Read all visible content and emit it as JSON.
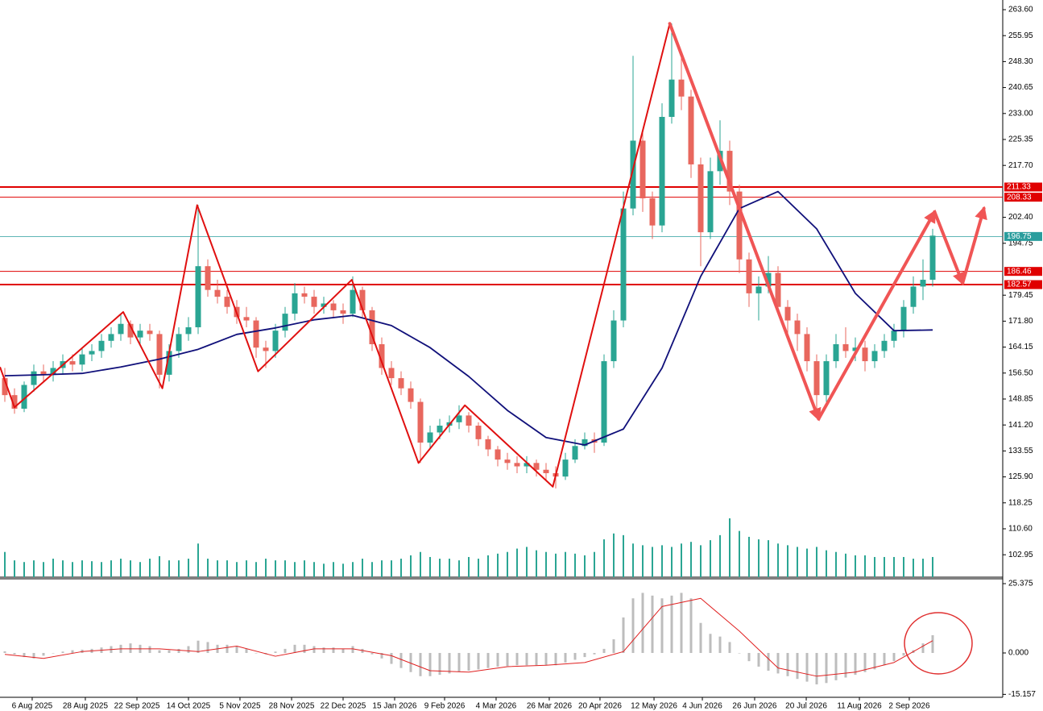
{
  "chart_data": {
    "type": "candlestick",
    "up_color": "#2aa593",
    "down_color": "#e8675e",
    "ohlc": [
      [
        155,
        158,
        148,
        150
      ],
      [
        150,
        152,
        144.5,
        146
      ],
      [
        146,
        154,
        145,
        153
      ],
      [
        153,
        159,
        151,
        157
      ],
      [
        157,
        159,
        154,
        156
      ],
      [
        156,
        160,
        154,
        158
      ],
      [
        158,
        162,
        156,
        160
      ],
      [
        160,
        162,
        157,
        159
      ],
      [
        159,
        164,
        157,
        162
      ],
      [
        162,
        165,
        160,
        163
      ],
      [
        163,
        168,
        161,
        166
      ],
      [
        166,
        170,
        164,
        168
      ],
      [
        168,
        174,
        166,
        171
      ],
      [
        171,
        172,
        165,
        167
      ],
      [
        167,
        171,
        165,
        169
      ],
      [
        169,
        171,
        166,
        168
      ],
      [
        168,
        169,
        152,
        156
      ],
      [
        156,
        165,
        154,
        163
      ],
      [
        163,
        170,
        161,
        168
      ],
      [
        168,
        173,
        166,
        170
      ],
      [
        170,
        206,
        168,
        188
      ],
      [
        188,
        190,
        179,
        181
      ],
      [
        181,
        184,
        177,
        179
      ],
      [
        179,
        181,
        174,
        176
      ],
      [
        176,
        178,
        171,
        173
      ],
      [
        173,
        176,
        170,
        172
      ],
      [
        172,
        173,
        161,
        164
      ],
      [
        164,
        166,
        158,
        163
      ],
      [
        163,
        171,
        161,
        169
      ],
      [
        169,
        176,
        167,
        174
      ],
      [
        174,
        183,
        172,
        180
      ],
      [
        180,
        182,
        177,
        179
      ],
      [
        179,
        181,
        174,
        176
      ],
      [
        176,
        179,
        174,
        177
      ],
      [
        177,
        178,
        173,
        175
      ],
      [
        175,
        177,
        171,
        174
      ],
      [
        174,
        185,
        173,
        181
      ],
      [
        181,
        182,
        173,
        175
      ],
      [
        175,
        176,
        163,
        165
      ],
      [
        165,
        167,
        156,
        158
      ],
      [
        158,
        160,
        153,
        155
      ],
      [
        155,
        157,
        150,
        152
      ],
      [
        152,
        154,
        146,
        148
      ],
      [
        148,
        149,
        130,
        136
      ],
      [
        136,
        141,
        134,
        139
      ],
      [
        139,
        143,
        137,
        141
      ],
      [
        141,
        144,
        139,
        142
      ],
      [
        142,
        147,
        140,
        144
      ],
      [
        144,
        145,
        139,
        141
      ],
      [
        141,
        142,
        135,
        137
      ],
      [
        137,
        138,
        132,
        134
      ],
      [
        134,
        135,
        129,
        131
      ],
      [
        131,
        133,
        128,
        130
      ],
      [
        130,
        132,
        127,
        129
      ],
      [
        129,
        132,
        127,
        130
      ],
      [
        130,
        131,
        126,
        128
      ],
      [
        128,
        130,
        125,
        127
      ],
      [
        127,
        129,
        122.5,
        126
      ],
      [
        126,
        133,
        125,
        131
      ],
      [
        131,
        137,
        130,
        135
      ],
      [
        135,
        139,
        134,
        137
      ],
      [
        137,
        139,
        133,
        136
      ],
      [
        136,
        162,
        135,
        160
      ],
      [
        160,
        175,
        158,
        172
      ],
      [
        172,
        210,
        170,
        205
      ],
      [
        205,
        250,
        203,
        225
      ],
      [
        225,
        228,
        204,
        208
      ],
      [
        208,
        210,
        196,
        200
      ],
      [
        200,
        236,
        198,
        232
      ],
      [
        232,
        259.5,
        230,
        243
      ],
      [
        243,
        250,
        234,
        238
      ],
      [
        238,
        240,
        214,
        218
      ],
      [
        218,
        220,
        188,
        198
      ],
      [
        198,
        220,
        196,
        216
      ],
      [
        216,
        231,
        212,
        222
      ],
      [
        222,
        225,
        206,
        210
      ],
      [
        210,
        212,
        186,
        190
      ],
      [
        190,
        192,
        176,
        180
      ],
      [
        180,
        185,
        172,
        182
      ],
      [
        182,
        191,
        180,
        186
      ],
      [
        186,
        188,
        174,
        176
      ],
      [
        176,
        178,
        168,
        172
      ],
      [
        172,
        174,
        163,
        168
      ],
      [
        168,
        170,
        157,
        160
      ],
      [
        160,
        162,
        143.5,
        150
      ],
      [
        150,
        162,
        148,
        160
      ],
      [
        160,
        168,
        158,
        165
      ],
      [
        165,
        170,
        161,
        163
      ],
      [
        163,
        167,
        160,
        164
      ],
      [
        164,
        166,
        157,
        160
      ],
      [
        160,
        165,
        158,
        163
      ],
      [
        163,
        168,
        161,
        166
      ],
      [
        166,
        171,
        164,
        169
      ],
      [
        169,
        178,
        167,
        176
      ],
      [
        176,
        185,
        174,
        182
      ],
      [
        182,
        190,
        178,
        184
      ],
      [
        184,
        199,
        182,
        197
      ]
    ],
    "volume": [
      30,
      20,
      18,
      20,
      18,
      22,
      20,
      18,
      20,
      19,
      18,
      20,
      22,
      20,
      18,
      22,
      25,
      20,
      20,
      22,
      40,
      22,
      20,
      20,
      18,
      20,
      18,
      22,
      20,
      20,
      18,
      20,
      18,
      16,
      18,
      16,
      18,
      22,
      18,
      20,
      20,
      22,
      26,
      30,
      24,
      22,
      22,
      20,
      24,
      22,
      26,
      28,
      30,
      34,
      36,
      32,
      30,
      28,
      30,
      28,
      26,
      30,
      45,
      52,
      50,
      40,
      38,
      36,
      38,
      36,
      40,
      42,
      38,
      44,
      50,
      70,
      55,
      48,
      45,
      44,
      40,
      38,
      36,
      34,
      36,
      32,
      30,
      28,
      26,
      26,
      24,
      24,
      24,
      24,
      22,
      22,
      24
    ],
    "volume_color": "#2aa593",
    "xlim": [
      0,
      103.75
    ],
    "xticks": [
      {
        "value": 3.33,
        "label": "6 Aug 2025"
      },
      {
        "value": 8.83,
        "label": "28 Aug 2025"
      },
      {
        "value": 14.17,
        "label": "22 Sep 2025"
      },
      {
        "value": 19.5,
        "label": "14 Oct 2025"
      },
      {
        "value": 24.83,
        "label": "5 Nov 2025"
      },
      {
        "value": 30.17,
        "label": "28 Nov 2025"
      },
      {
        "value": 35.5,
        "label": "22 Dec 2025"
      },
      {
        "value": 40.83,
        "label": "15 Jan 2026"
      },
      {
        "value": 46,
        "label": "9 Feb 2026"
      },
      {
        "value": 51.33,
        "label": "4 Mar 2026"
      },
      {
        "value": 56.83,
        "label": "26 Mar 2026"
      },
      {
        "value": 62.08,
        "label": "20 Apr 2026"
      },
      {
        "value": 67.67,
        "label": "12 May 2026"
      },
      {
        "value": 72.67,
        "label": "4 Jun 2026"
      },
      {
        "value": 78.08,
        "label": "26 Jun 2026"
      },
      {
        "value": 83.42,
        "label": "20 Jul 2026"
      },
      {
        "value": 88.92,
        "label": "11 Aug 2026"
      },
      {
        "value": 94.08,
        "label": "2 Sep 2026"
      }
    ],
    "ylim": [
      96.34,
      266.45
    ],
    "yticks": [
      {
        "value": 263.6,
        "label": "263.60"
      },
      255.95,
      {
        "value": 248.3,
        "label": "248.30"
      },
      240.65,
      {
        "value": 233,
        "label": "233.00"
      },
      225.35,
      {
        "value": 217.7,
        "label": "217.70"
      },
      {
        "value": 202.4,
        "label": "202.40"
      },
      194.75,
      179.45,
      {
        "value": 171.8,
        "label": "171.80"
      },
      164.15,
      {
        "value": 156.5,
        "label": "156.50"
      },
      148.85,
      {
        "value": 141.2,
        "label": "141.20"
      },
      133.55,
      {
        "value": 125.9,
        "label": "125.90"
      },
      118.25,
      {
        "value": 110.6,
        "label": "110.60"
      },
      102.95
    ],
    "ma": {
      "color": "#10107a",
      "x": [
        0.5,
        4.5,
        8.5,
        12.5,
        16.5,
        20.5,
        24.5,
        28.5,
        32.5,
        36.5,
        40.5,
        44.5,
        48.5,
        52.5,
        56.5,
        60.5,
        64.5,
        68.5,
        72.5,
        76.5,
        80.5,
        84.5,
        88.5,
        92.5,
        96.5
      ],
      "values": [
        155.7,
        156,
        156.4,
        158.3,
        160.6,
        163.5,
        167.9,
        169.8,
        172.2,
        173.5,
        170.5,
        164,
        155.5,
        145.5,
        137.5,
        135.3,
        140,
        158,
        185,
        205,
        210,
        199,
        180,
        169,
        169.2
      ]
    },
    "zigzag": {
      "color": "#e01010",
      "x": [
        0,
        1.5,
        12.75,
        16.8,
        20.4,
        26.7,
        36.4,
        43.3,
        48.1,
        57.2,
        69.3
      ],
      "values": [
        158.3,
        146.4,
        174.5,
        152,
        206,
        157,
        184,
        130,
        147,
        123,
        259.5
      ]
    },
    "forecast": {
      "color": "#f05555",
      "x": [
        69.3,
        84.7,
        96.7,
        99.6,
        101.8
      ],
      "values": [
        259.5,
        143,
        204,
        183,
        205
      ]
    },
    "levels": [
      211.33,
      208.33,
      186.46,
      182.57
    ],
    "level_color": "#e00000",
    "last_price": 196.75,
    "last_price_color": "#2a9d9d",
    "macd": {
      "ylim": [
        -16.23,
        27.15
      ],
      "yticks": [
        25.375,
        {
          "value": 0,
          "label": "0.000"
        },
        {
          "value": -15.157,
          "label": "-15.157"
        }
      ],
      "hist_color": "#bdbdbd",
      "histogram": [
        0.6,
        -0.5,
        -1.5,
        -2,
        -1,
        0,
        0.5,
        1,
        1.2,
        1.5,
        2,
        2.5,
        3,
        3.5,
        3,
        2.5,
        1,
        1,
        1.5,
        2.5,
        4.5,
        4,
        3,
        3,
        2.5,
        1.5,
        0,
        -0.5,
        0.5,
        1.5,
        3,
        3,
        2.5,
        2,
        2,
        1.5,
        2.5,
        1.5,
        -0.5,
        -2,
        -4,
        -5.5,
        -7,
        -8.5,
        -8.5,
        -8,
        -7.5,
        -7,
        -6.5,
        -6,
        -5.5,
        -5,
        -4.8,
        -4.5,
        -4.5,
        -4.5,
        -4.5,
        -4.5,
        -3.5,
        -2.5,
        -1.5,
        -0.5,
        1.5,
        5,
        13,
        20,
        22,
        21,
        20,
        21,
        22,
        20,
        11,
        7,
        6,
        4,
        0,
        -3,
        -5,
        -6.5,
        -7.5,
        -8.5,
        -9.5,
        -10.5,
        -11.5,
        -11,
        -10,
        -9,
        -8,
        -7,
        -6,
        -4.5,
        -3,
        -1,
        1,
        3.5,
        6.5
      ],
      "signal": {
        "color": "#e02020",
        "x": [
          0.5,
          4.5,
          8.5,
          12.5,
          16.5,
          20.5,
          24.5,
          28.5,
          32.5,
          36.5,
          40.5,
          44.5,
          48.5,
          52.5,
          56.5,
          60.5,
          64.5,
          68.5,
          72.5,
          76.5,
          80.5,
          84.5,
          88.5,
          92.5,
          96.5
        ],
        "values": [
          -0.5,
          -2,
          0.5,
          1.5,
          1.5,
          0.5,
          2.5,
          -1.2,
          1.5,
          1.5,
          -1,
          -6.5,
          -7,
          -5,
          -4.5,
          -3.5,
          0.5,
          17,
          20,
          8,
          -5.5,
          -8.5,
          -7,
          -3.5,
          4.5
        ]
      }
    }
  }
}
